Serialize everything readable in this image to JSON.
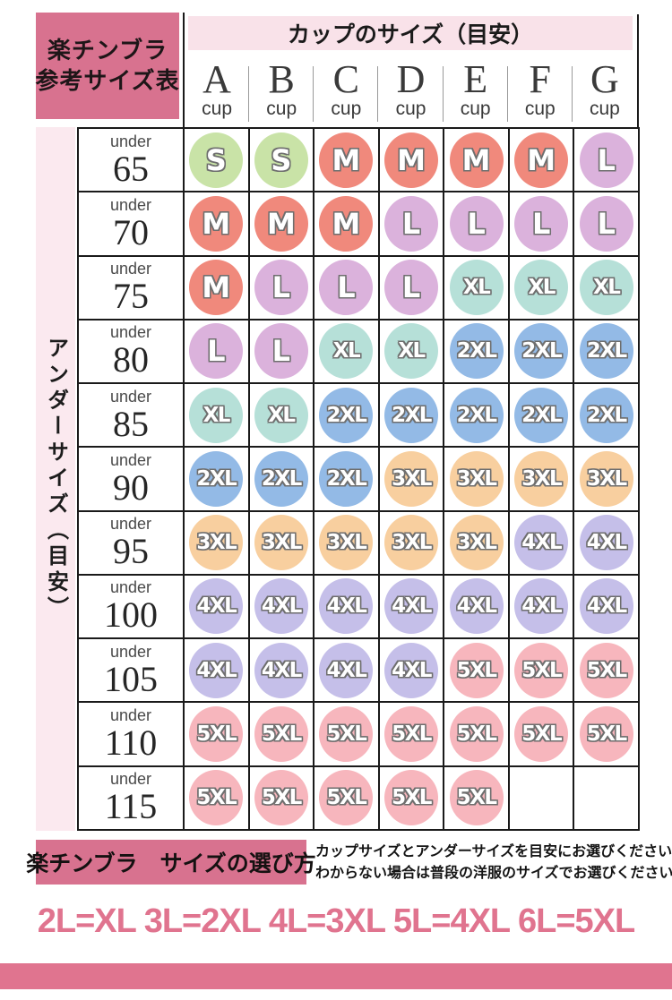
{
  "title_box": {
    "line1": "楽チンブラ",
    "line2": "参考サイズ表"
  },
  "cup_header": {
    "title": "カップのサイズ（目安）",
    "letters": [
      "A",
      "B",
      "C",
      "D",
      "E",
      "F",
      "G"
    ],
    "suffix": "cup"
  },
  "side_label": "アンダーサイズ（目安）",
  "under_prefix": "under",
  "chart_data": {
    "type": "table",
    "title": "楽チンブラ 参考サイズ表",
    "col_header_title": "カップのサイズ（目安）",
    "columns": [
      "A cup",
      "B cup",
      "C cup",
      "D cup",
      "E cup",
      "F cup",
      "G cup"
    ],
    "row_header_title": "アンダーサイズ（目安）",
    "under_sizes": [
      "65",
      "70",
      "75",
      "80",
      "85",
      "90",
      "95",
      "100",
      "105",
      "110",
      "115"
    ],
    "rows": [
      [
        "S",
        "S",
        "M",
        "M",
        "M",
        "M",
        "L"
      ],
      [
        "M",
        "M",
        "M",
        "L",
        "L",
        "L",
        "L"
      ],
      [
        "M",
        "L",
        "L",
        "L",
        "XL",
        "XL",
        "XL"
      ],
      [
        "L",
        "L",
        "XL",
        "XL",
        "2XL",
        "2XL",
        "2XL"
      ],
      [
        "XL",
        "XL",
        "2XL",
        "2XL",
        "2XL",
        "2XL",
        "2XL"
      ],
      [
        "2XL",
        "2XL",
        "2XL",
        "3XL",
        "3XL",
        "3XL",
        "3XL"
      ],
      [
        "3XL",
        "3XL",
        "3XL",
        "3XL",
        "3XL",
        "4XL",
        "4XL"
      ],
      [
        "4XL",
        "4XL",
        "4XL",
        "4XL",
        "4XL",
        "4XL",
        "4XL"
      ],
      [
        "4XL",
        "4XL",
        "4XL",
        "4XL",
        "5XL",
        "5XL",
        "5XL"
      ],
      [
        "5XL",
        "5XL",
        "5XL",
        "5XL",
        "5XL",
        "5XL",
        "5XL"
      ],
      [
        "5XL",
        "5XL",
        "5XL",
        "5XL",
        "5XL",
        "",
        ""
      ]
    ],
    "size_colors": {
      "S": "#c9e3a7",
      "M": "#f0897c",
      "L": "#dbb2dc",
      "XL": "#b6e0d8",
      "2XL": "#93bae6",
      "3XL": "#f8cf9f",
      "4XL": "#c5bfe9",
      "5XL": "#f7b6bd"
    }
  },
  "footer": {
    "box_title": "楽チンブラ　サイズの選び方",
    "note_line1": "カップサイズとアンダーサイズを目安にお選びください。",
    "note_line2": "わからない場合は普段の洋服のサイズでお選びください。",
    "conversion": "2L=XL 3L=2XL 4L=3XL 5L=4XL 6L=5XL"
  },
  "colors": {
    "accent_dark_pink": "#d8728f",
    "header_strip_pink": "#f9e2e9",
    "side_strip_pink": "#fbe9ef",
    "bottom_bar_pink": "#e0748f",
    "grid_line": "#1a1a1a"
  }
}
